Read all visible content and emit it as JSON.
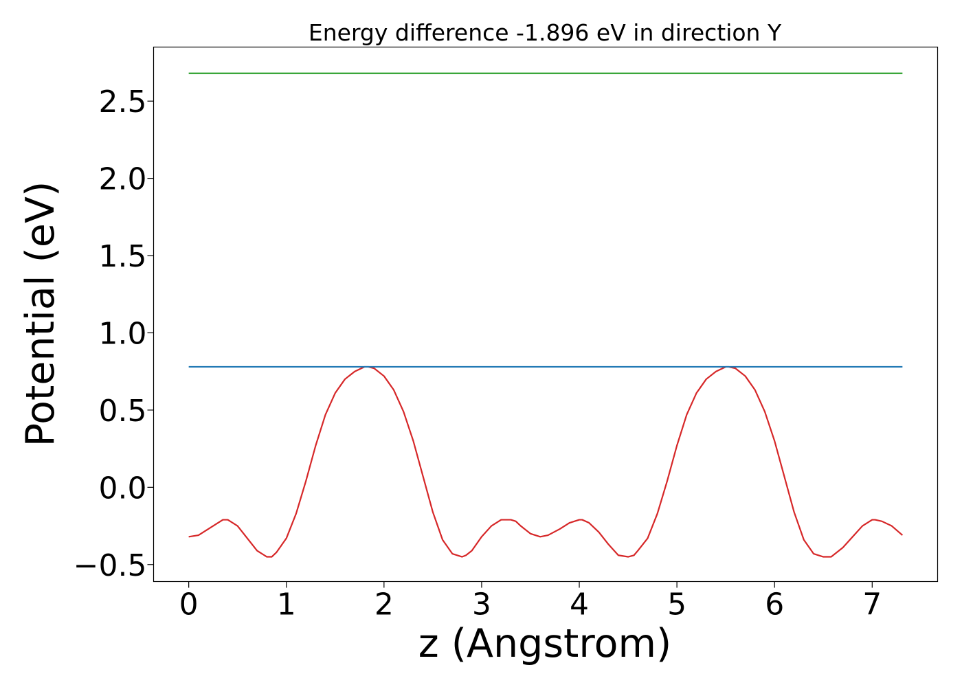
{
  "chart_data": {
    "type": "line",
    "title": "Energy difference -1.896 eV in direction Y",
    "xlabel": "z (Angstrom)",
    "ylabel": "Potential (eV)",
    "xlim": [
      -0.36,
      7.67
    ],
    "ylim": [
      -0.61,
      2.85
    ],
    "xticks": [
      0,
      1,
      2,
      3,
      4,
      5,
      6,
      7
    ],
    "xtick_labels": [
      "0",
      "1",
      "2",
      "3",
      "4",
      "5",
      "6",
      "7"
    ],
    "yticks": [
      -0.5,
      0.0,
      0.5,
      1.0,
      1.5,
      2.0,
      2.5
    ],
    "ytick_labels": [
      "−0.5",
      "0.0",
      "0.5",
      "1.0",
      "1.5",
      "2.0",
      "2.5"
    ],
    "grid": false,
    "legend": "none",
    "series": [
      {
        "color": "#d62728",
        "x": [
          0.0,
          0.1,
          0.2,
          0.3,
          0.35,
          0.4,
          0.5,
          0.6,
          0.7,
          0.8,
          0.85,
          0.9,
          1.0,
          1.1,
          1.2,
          1.3,
          1.4,
          1.5,
          1.6,
          1.7,
          1.8,
          1.84,
          1.9,
          2.0,
          2.1,
          2.2,
          2.3,
          2.4,
          2.5,
          2.6,
          2.7,
          2.8,
          2.84,
          2.9,
          3.0,
          3.1,
          3.2,
          3.3,
          3.35,
          3.4,
          3.5,
          3.6,
          3.68,
          3.8,
          3.9,
          4.0,
          4.03,
          4.1,
          4.2,
          4.3,
          4.4,
          4.5,
          4.56,
          4.6,
          4.7,
          4.8,
          4.9,
          5.0,
          5.1,
          5.2,
          5.3,
          5.4,
          5.5,
          5.53,
          5.6,
          5.7,
          5.8,
          5.9,
          6.0,
          6.1,
          6.2,
          6.3,
          6.4,
          6.5,
          6.58,
          6.6,
          6.7,
          6.8,
          6.9,
          7.0,
          7.03,
          7.1,
          7.2,
          7.31
        ],
        "y": [
          -0.32,
          -0.31,
          -0.27,
          -0.23,
          -0.21,
          -0.21,
          -0.25,
          -0.33,
          -0.41,
          -0.45,
          -0.45,
          -0.42,
          -0.33,
          -0.17,
          0.04,
          0.27,
          0.47,
          0.61,
          0.7,
          0.75,
          0.78,
          0.78,
          0.77,
          0.72,
          0.63,
          0.49,
          0.3,
          0.07,
          -0.16,
          -0.34,
          -0.43,
          -0.45,
          -0.44,
          -0.41,
          -0.32,
          -0.25,
          -0.21,
          -0.21,
          -0.22,
          -0.25,
          -0.3,
          -0.32,
          -0.31,
          -0.27,
          -0.23,
          -0.21,
          -0.21,
          -0.23,
          -0.29,
          -0.37,
          -0.44,
          -0.45,
          -0.44,
          -0.41,
          -0.33,
          -0.17,
          0.04,
          0.27,
          0.47,
          0.61,
          0.7,
          0.75,
          0.78,
          0.78,
          0.77,
          0.72,
          0.63,
          0.49,
          0.3,
          0.07,
          -0.16,
          -0.34,
          -0.43,
          -0.45,
          -0.45,
          -0.44,
          -0.39,
          -0.32,
          -0.25,
          -0.21,
          -0.21,
          -0.22,
          -0.25,
          -0.31
        ]
      },
      {
        "color": "#1f77b4",
        "x": [
          0.0,
          7.31
        ],
        "y": [
          0.78,
          0.78
        ]
      },
      {
        "color": "#2ca02c",
        "x": [
          0.0,
          7.31
        ],
        "y": [
          2.68,
          2.68
        ]
      }
    ]
  }
}
